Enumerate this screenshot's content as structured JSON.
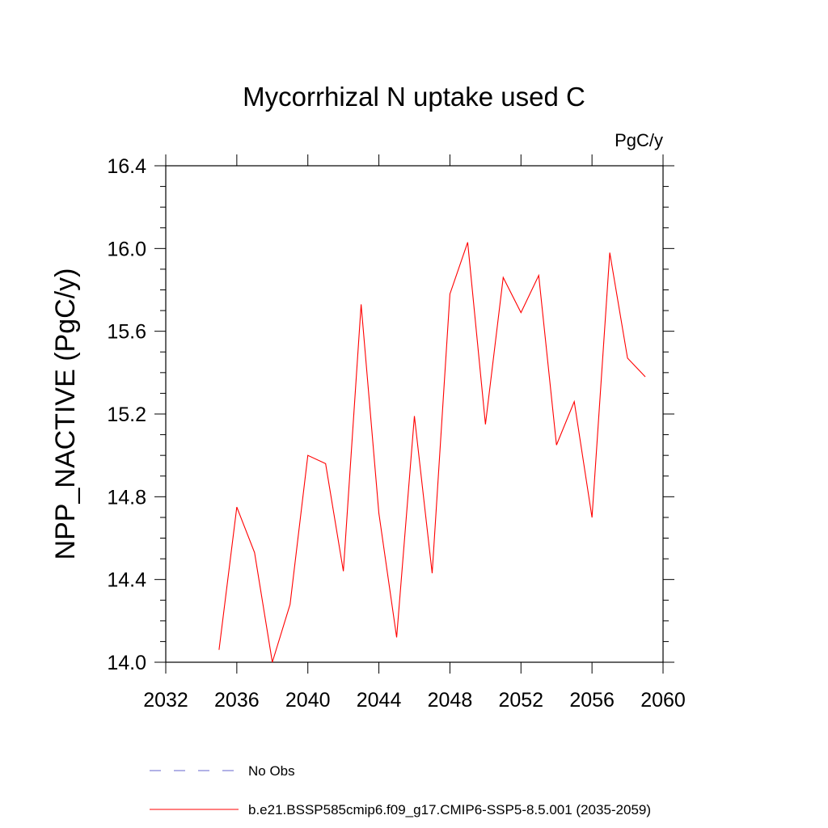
{
  "chart_data": {
    "type": "line",
    "title": "Mycorrhizal N uptake used C",
    "units": "PgC/y",
    "ylabel": "NPP_NACTIVE  (PgC/y)",
    "xlabel": "",
    "xlim": [
      2032,
      2060
    ],
    "ylim": [
      14.0,
      16.4
    ],
    "xticks": [
      2032,
      2036,
      2040,
      2044,
      2048,
      2052,
      2056,
      2060
    ],
    "xtick_labels": [
      "2032",
      "2036",
      "2040",
      "2044",
      "2048",
      "2052",
      "2056",
      "2060"
    ],
    "yticks": [
      14.0,
      14.4,
      14.8,
      15.2,
      15.6,
      16.0,
      16.4
    ],
    "ytick_labels": [
      "14.0",
      "14.4",
      "14.8",
      "15.2",
      "15.6",
      "16.0",
      "16.4"
    ],
    "grid": false,
    "series": [
      {
        "name": "b.e21.BSSP585cmip6.f09_g17.CMIP6-SSP5-8.5.001 (2035-2059)",
        "color": "#ff0000",
        "x": [
          2035,
          2036,
          2037,
          2038,
          2039,
          2040,
          2041,
          2042,
          2043,
          2044,
          2045,
          2046,
          2047,
          2048,
          2049,
          2050,
          2051,
          2052,
          2053,
          2054,
          2055,
          2056,
          2057,
          2058,
          2059
        ],
        "values": [
          14.06,
          14.75,
          14.53,
          14.0,
          14.28,
          15.0,
          14.96,
          14.44,
          15.73,
          14.72,
          14.12,
          15.19,
          14.43,
          15.78,
          16.03,
          15.15,
          15.86,
          15.69,
          15.87,
          15.05,
          15.26,
          14.7,
          15.98,
          15.47,
          15.38
        ]
      }
    ],
    "legend": {
      "placement": "bottom",
      "entries": [
        {
          "label": "No Obs",
          "style": "dashed",
          "color": "#6666cc"
        },
        {
          "label": "b.e21.BSSP585cmip6.f09_g17.CMIP6-SSP5-8.5.001 (2035-2059)",
          "style": "solid",
          "color": "#ff0000"
        }
      ]
    }
  }
}
